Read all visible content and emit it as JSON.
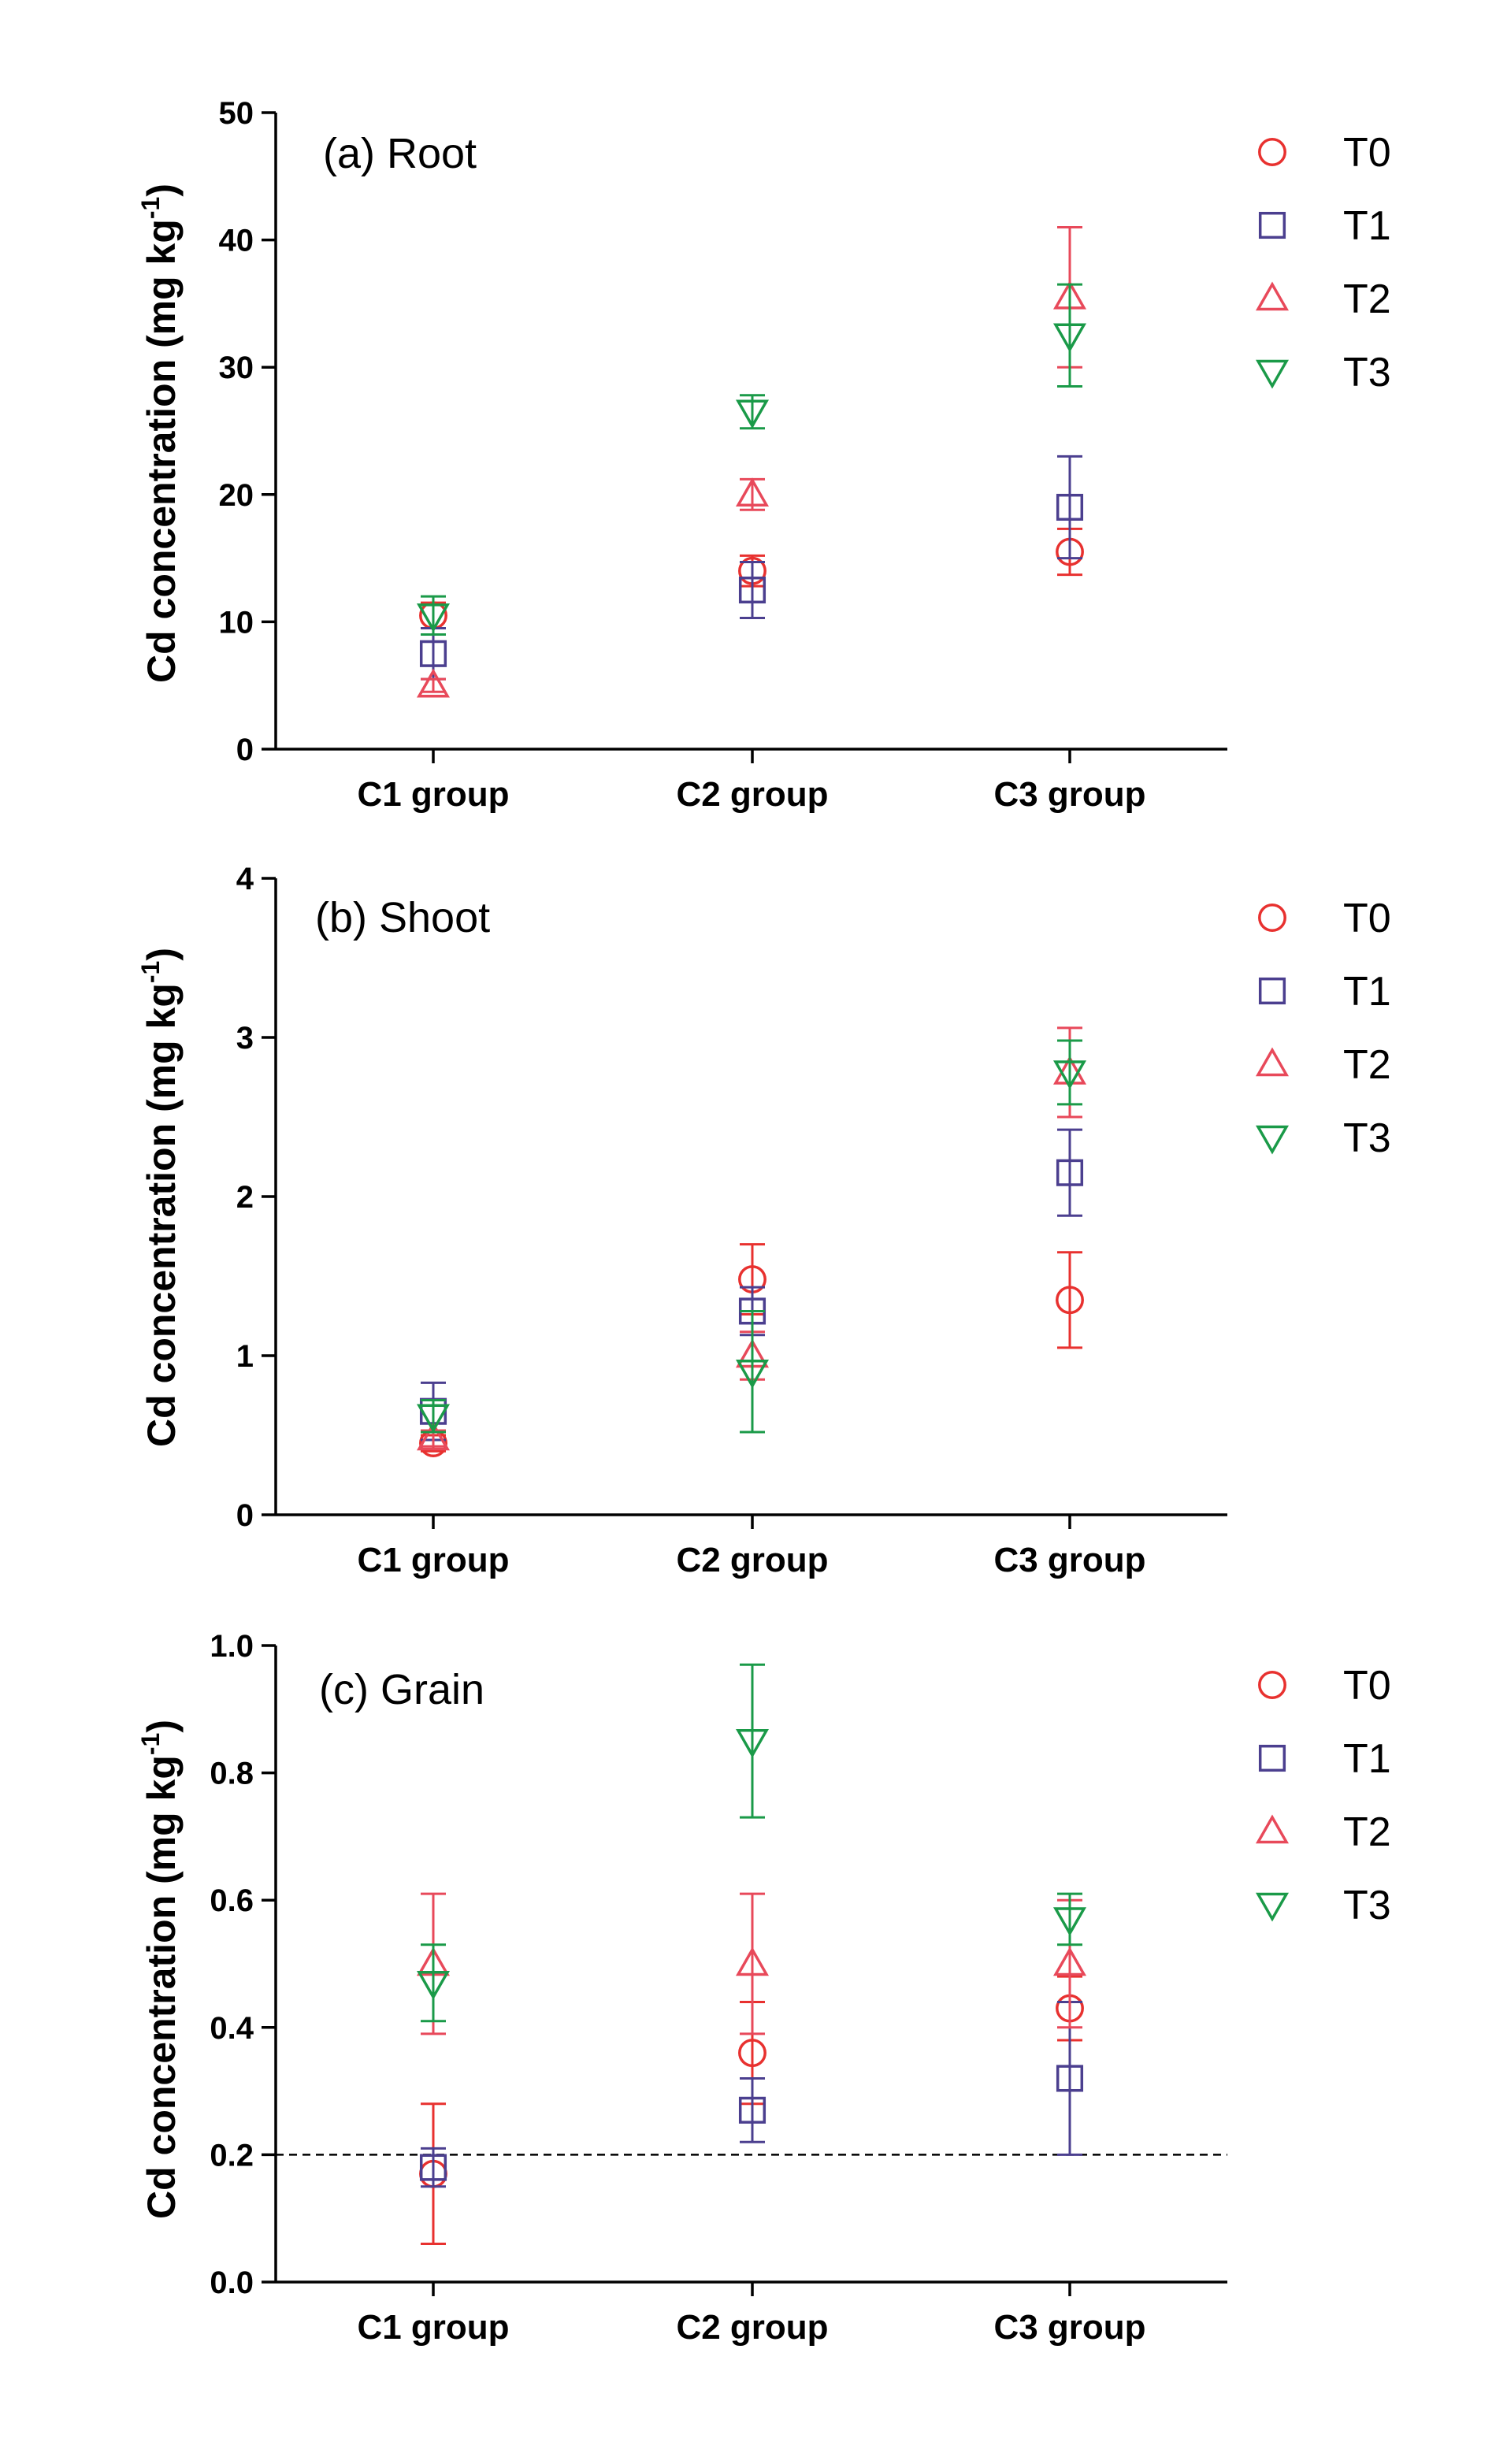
{
  "chart_data": [
    {
      "type": "scatter",
      "title": "(a) Root",
      "ylabel": "Cd concentration (mg kg",
      "ylabel_sup": "-1",
      "ylabel_close": ")",
      "categories": [
        "C1 group",
        "C2 group",
        "C3 group"
      ],
      "ylim": [
        0,
        50
      ],
      "yticks": [
        0,
        10,
        20,
        30,
        40,
        50
      ],
      "ytick_labels": [
        "0",
        "10",
        "20",
        "30",
        "40",
        "50"
      ],
      "legend": [
        "T0",
        "T1",
        "T2",
        "T3"
      ],
      "series": [
        {
          "name": "T0",
          "values": [
            10.5,
            14.0,
            15.5
          ],
          "err": [
            1.0,
            1.2,
            1.8
          ]
        },
        {
          "name": "T1",
          "values": [
            7.5,
            12.5,
            19.0
          ],
          "err": [
            2.0,
            2.2,
            4.0
          ]
        },
        {
          "name": "T2",
          "values": [
            5.0,
            20.0,
            35.5
          ],
          "err": [
            0.5,
            1.2,
            5.5
          ]
        },
        {
          "name": "T3",
          "values": [
            10.5,
            26.5,
            32.5
          ],
          "err": [
            1.5,
            1.3,
            4.0
          ]
        }
      ]
    },
    {
      "type": "scatter",
      "title": "(b) Shoot",
      "ylabel": "Cd concentration (mg kg",
      "ylabel_sup": "-1",
      "ylabel_close": ")",
      "categories": [
        "C1 group",
        "C2 group",
        "C3 group"
      ],
      "ylim": [
        0,
        4
      ],
      "yticks": [
        0,
        1,
        2,
        3,
        4
      ],
      "ytick_labels": [
        "0",
        "1",
        "2",
        "3",
        "4"
      ],
      "legend": [
        "T0",
        "T1",
        "T2",
        "T3"
      ],
      "series": [
        {
          "name": "T0",
          "values": [
            0.45,
            1.48,
            1.35
          ],
          "err": [
            0.05,
            0.22,
            0.3
          ]
        },
        {
          "name": "T1",
          "values": [
            0.65,
            1.28,
            2.15
          ],
          "err": [
            0.18,
            0.15,
            0.27
          ]
        },
        {
          "name": "T2",
          "values": [
            0.48,
            1.0,
            2.78
          ],
          "err": [
            0.05,
            0.15,
            0.28
          ]
        },
        {
          "name": "T3",
          "values": [
            0.62,
            0.9,
            2.78
          ],
          "err": [
            0.1,
            0.38,
            0.2
          ]
        }
      ]
    },
    {
      "type": "scatter",
      "title": "(c) Grain",
      "ylabel": "Cd concentration (mg kg",
      "ylabel_sup": "-1",
      "ylabel_close": ")",
      "categories": [
        "C1 group",
        "C2 group",
        "C3 group"
      ],
      "ylim": [
        0,
        1.0
      ],
      "yticks": [
        0,
        0.2,
        0.4,
        0.6,
        0.8,
        1.0
      ],
      "ytick_labels": [
        "0.0",
        "0.2",
        "0.4",
        "0.6",
        "0.8",
        "1.0"
      ],
      "reference_line": 0.2,
      "legend": [
        "T0",
        "T1",
        "T2",
        "T3"
      ],
      "series": [
        {
          "name": "T0",
          "values": [
            0.17,
            0.36,
            0.43
          ],
          "err": [
            0.11,
            0.08,
            0.05
          ]
        },
        {
          "name": "T1",
          "values": [
            0.18,
            0.27,
            0.32
          ],
          "err": [
            0.03,
            0.05,
            0.12
          ]
        },
        {
          "name": "T2",
          "values": [
            0.5,
            0.5,
            0.5
          ],
          "err": [
            0.11,
            0.11,
            0.1
          ]
        },
        {
          "name": "T3",
          "values": [
            0.47,
            0.85,
            0.57
          ],
          "err": [
            0.06,
            0.12,
            0.04
          ]
        }
      ]
    }
  ],
  "colors": {
    "T0": "#e8312f",
    "T1": "#4b3f8f",
    "T2": "#e8495a",
    "T3": "#1a9a48"
  },
  "markers": {
    "T0": "circle",
    "T1": "square",
    "T2": "triangle-up",
    "T3": "triangle-down"
  }
}
